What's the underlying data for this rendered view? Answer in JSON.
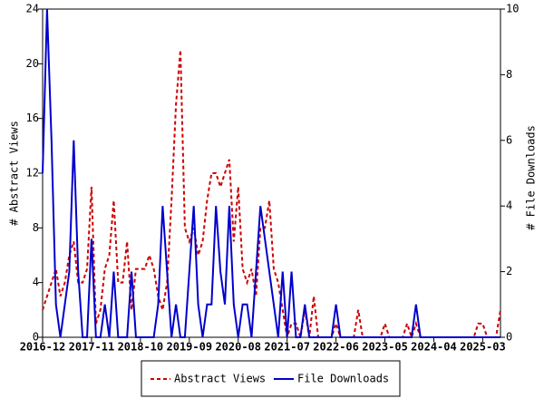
{
  "chart_data": {
    "type": "line",
    "y_label": "# Abstract Views",
    "y2_label": "# File Downloads",
    "categories": [
      "2016-12",
      null,
      null,
      null,
      null,
      null,
      null,
      null,
      null,
      null,
      null,
      "2017-11",
      null,
      null,
      null,
      null,
      null,
      null,
      null,
      null,
      null,
      null,
      "2018-10",
      null,
      null,
      null,
      null,
      null,
      null,
      null,
      null,
      null,
      null,
      "2019-09",
      null,
      null,
      null,
      null,
      null,
      null,
      null,
      null,
      null,
      null,
      "2020-08",
      null,
      null,
      null,
      null,
      null,
      null,
      null,
      null,
      null,
      null,
      "2021-07",
      null,
      null,
      null,
      null,
      null,
      null,
      null,
      null,
      null,
      null,
      "2022-06",
      null,
      null,
      null,
      null,
      null,
      null,
      null,
      null,
      null,
      null,
      "2023-05",
      null,
      null,
      null,
      null,
      null,
      null,
      null,
      null,
      null,
      null,
      "2024-04",
      null,
      null,
      null,
      null,
      null,
      null,
      null,
      null,
      null,
      null,
      "2025-03",
      null,
      null,
      null,
      null
    ],
    "series": [
      {
        "name": "Abstract Views",
        "color": "#cc0000",
        "dashed": true,
        "axis": "y",
        "values": [
          2,
          3,
          4,
          5,
          3,
          4,
          6,
          7,
          4,
          4,
          5,
          11,
          1,
          2,
          5,
          6,
          10,
          4,
          4,
          7,
          2,
          5,
          5,
          5,
          6,
          5,
          3,
          2,
          4,
          10,
          17,
          21,
          8,
          7,
          8,
          6,
          7,
          10,
          12,
          12,
          11,
          12,
          13,
          7,
          11,
          5,
          4,
          5,
          3,
          8,
          8,
          10,
          5,
          4,
          2,
          0,
          1,
          1,
          0,
          2,
          0,
          3,
          0,
          0,
          0,
          0,
          1,
          0,
          0,
          0,
          0,
          2,
          0,
          0,
          0,
          0,
          0,
          1,
          0,
          0,
          0,
          0,
          1,
          0,
          1,
          0,
          0,
          0,
          0,
          0,
          0,
          0,
          0,
          0,
          0,
          0,
          0,
          0,
          1,
          1,
          0,
          0,
          0,
          2
        ]
      },
      {
        "name": "File Downloads",
        "color": "#0000cc",
        "dashed": false,
        "axis": "y2",
        "values": [
          5,
          10,
          6,
          1,
          0,
          1,
          2,
          6,
          2,
          0,
          0,
          3,
          0,
          0,
          1,
          0,
          2,
          0,
          0,
          0,
          2,
          0,
          0,
          0,
          0,
          0,
          1,
          4,
          2,
          0,
          1,
          0,
          0,
          2,
          4,
          1,
          0,
          1,
          1,
          4,
          2,
          1,
          4,
          1,
          0,
          1,
          1,
          0,
          2,
          4,
          3,
          2,
          1,
          0,
          2,
          0,
          2,
          0,
          0,
          1,
          0,
          0,
          0,
          0,
          0,
          0,
          1,
          0,
          0,
          0,
          0,
          0,
          0,
          0,
          0,
          0,
          0,
          0,
          0,
          0,
          0,
          0,
          0,
          0,
          1,
          0,
          0,
          0,
          0,
          0,
          0,
          0,
          0,
          0,
          0,
          0,
          0,
          0,
          0,
          0,
          0,
          0,
          0,
          0
        ]
      }
    ],
    "ylim": [
      0,
      24
    ],
    "yticks": [
      0,
      4,
      8,
      12,
      16,
      20,
      24
    ],
    "y2lim": [
      0,
      10
    ],
    "y2ticks": [
      0,
      2,
      4,
      6,
      8,
      10
    ],
    "legend": "bottom"
  }
}
